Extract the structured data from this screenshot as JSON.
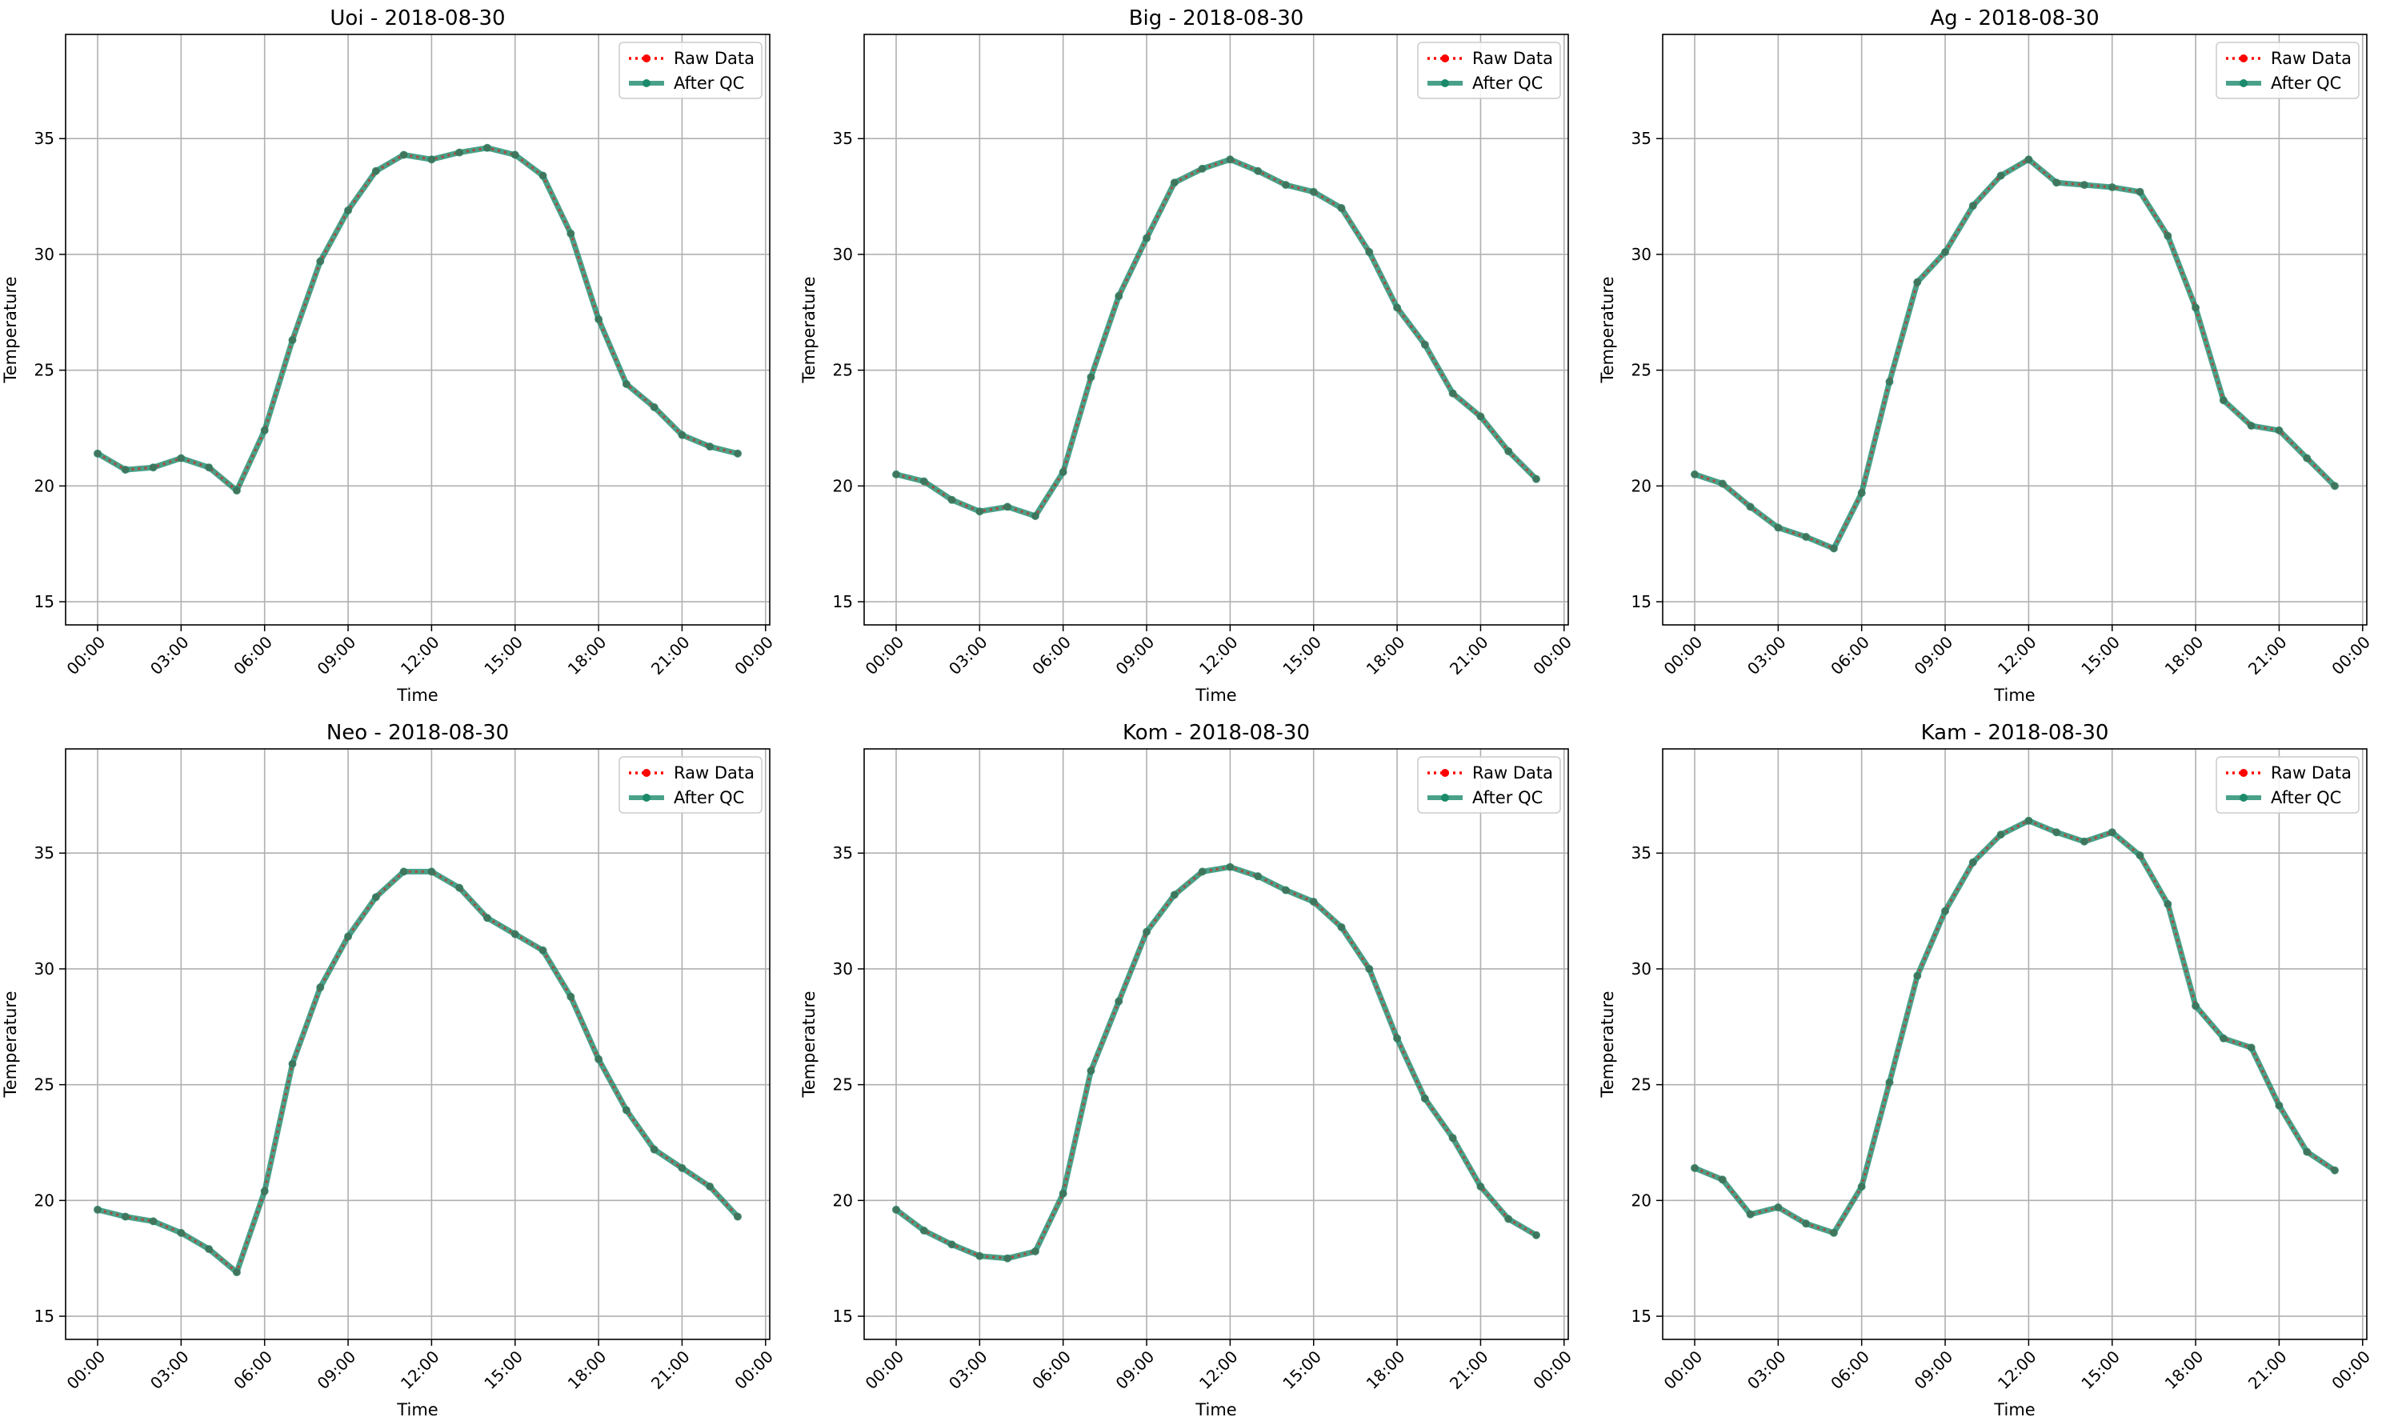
{
  "figure": {
    "background": "#ffffff"
  },
  "colors": {
    "raw": "#ff0000",
    "qc": "#1b8a6b",
    "grid": "#b0b0b0",
    "axes": "#000000"
  },
  "legend": {
    "raw_label": "Raw Data",
    "qc_label": "After QC",
    "placement": "upper right"
  },
  "chart_data": [
    {
      "type": "line",
      "title": "Uoi - 2018-08-30",
      "xlabel": "Time",
      "ylabel": "Temperature",
      "x": [
        "00:00",
        "01:00",
        "02:00",
        "03:00",
        "04:00",
        "05:00",
        "06:00",
        "07:00",
        "08:00",
        "09:00",
        "10:00",
        "11:00",
        "12:00",
        "13:00",
        "14:00",
        "15:00",
        "16:00",
        "17:00",
        "18:00",
        "19:00",
        "20:00",
        "21:00",
        "22:00",
        "23:00"
      ],
      "xticks": [
        "00:00",
        "03:00",
        "06:00",
        "09:00",
        "12:00",
        "15:00",
        "18:00",
        "21:00",
        "00:00"
      ],
      "xlim_hours": [
        -1.15,
        24.15
      ],
      "ylim": [
        14,
        39.5
      ],
      "yticks": [
        15,
        20,
        25,
        30,
        35
      ],
      "grid": true,
      "series": [
        {
          "name": "Raw Data",
          "values": [
            21.4,
            20.7,
            20.8,
            21.2,
            20.8,
            19.8,
            22.4,
            26.3,
            29.7,
            31.9,
            33.6,
            34.3,
            34.1,
            34.4,
            34.6,
            34.3,
            33.4,
            30.9,
            27.2,
            24.4,
            23.4,
            22.2,
            21.7,
            21.4
          ]
        },
        {
          "name": "After QC",
          "values": [
            21.4,
            20.7,
            20.8,
            21.2,
            20.8,
            19.8,
            22.4,
            26.3,
            29.7,
            31.9,
            33.6,
            34.3,
            34.1,
            34.4,
            34.6,
            34.3,
            33.4,
            30.9,
            27.2,
            24.4,
            23.4,
            22.2,
            21.7,
            21.4
          ]
        }
      ]
    },
    {
      "type": "line",
      "title": "Big - 2018-08-30",
      "xlabel": "Time",
      "ylabel": "Temperature",
      "x": [
        "00:00",
        "01:00",
        "02:00",
        "03:00",
        "04:00",
        "05:00",
        "06:00",
        "07:00",
        "08:00",
        "09:00",
        "10:00",
        "11:00",
        "12:00",
        "13:00",
        "14:00",
        "15:00",
        "16:00",
        "17:00",
        "18:00",
        "19:00",
        "20:00",
        "21:00",
        "22:00",
        "23:00"
      ],
      "xticks": [
        "00:00",
        "03:00",
        "06:00",
        "09:00",
        "12:00",
        "15:00",
        "18:00",
        "21:00",
        "00:00"
      ],
      "xlim_hours": [
        -1.15,
        24.15
      ],
      "ylim": [
        14,
        39.5
      ],
      "yticks": [
        15,
        20,
        25,
        30,
        35
      ],
      "grid": true,
      "series": [
        {
          "name": "Raw Data",
          "values": [
            20.5,
            20.2,
            19.4,
            18.9,
            19.1,
            18.7,
            20.6,
            24.7,
            28.2,
            30.7,
            33.1,
            33.7,
            34.1,
            33.6,
            33.0,
            32.7,
            32.0,
            30.1,
            27.7,
            26.1,
            24.0,
            23.0,
            21.5,
            20.3
          ]
        },
        {
          "name": "After QC",
          "values": [
            20.5,
            20.2,
            19.4,
            18.9,
            19.1,
            18.7,
            20.6,
            24.7,
            28.2,
            30.7,
            33.1,
            33.7,
            34.1,
            33.6,
            33.0,
            32.7,
            32.0,
            30.1,
            27.7,
            26.1,
            24.0,
            23.0,
            21.5,
            20.3
          ]
        }
      ]
    },
    {
      "type": "line",
      "title": "Ag - 2018-08-30",
      "xlabel": "Time",
      "ylabel": "Temperature",
      "x": [
        "00:00",
        "01:00",
        "02:00",
        "03:00",
        "04:00",
        "05:00",
        "06:00",
        "07:00",
        "08:00",
        "09:00",
        "10:00",
        "11:00",
        "12:00",
        "13:00",
        "14:00",
        "15:00",
        "16:00",
        "17:00",
        "18:00",
        "19:00",
        "20:00",
        "21:00",
        "22:00",
        "23:00"
      ],
      "xticks": [
        "00:00",
        "03:00",
        "06:00",
        "09:00",
        "12:00",
        "15:00",
        "18:00",
        "21:00",
        "00:00"
      ],
      "xlim_hours": [
        -1.15,
        24.15
      ],
      "ylim": [
        14,
        39.5
      ],
      "yticks": [
        15,
        20,
        25,
        30,
        35
      ],
      "grid": true,
      "series": [
        {
          "name": "Raw Data",
          "values": [
            20.5,
            20.1,
            19.1,
            18.2,
            17.8,
            17.3,
            19.7,
            24.5,
            28.8,
            30.1,
            32.1,
            33.4,
            34.1,
            33.1,
            33.0,
            32.9,
            32.7,
            30.8,
            27.7,
            23.7,
            22.6,
            22.4,
            21.2,
            20.0
          ]
        },
        {
          "name": "After QC",
          "values": [
            20.5,
            20.1,
            19.1,
            18.2,
            17.8,
            17.3,
            19.7,
            24.5,
            28.8,
            30.1,
            32.1,
            33.4,
            34.1,
            33.1,
            33.0,
            32.9,
            32.7,
            30.8,
            27.7,
            23.7,
            22.6,
            22.4,
            21.2,
            20.0
          ]
        }
      ]
    },
    {
      "type": "line",
      "title": "Neo - 2018-08-30",
      "xlabel": "Time",
      "ylabel": "Temperature",
      "x": [
        "00:00",
        "01:00",
        "02:00",
        "03:00",
        "04:00",
        "05:00",
        "06:00",
        "07:00",
        "08:00",
        "09:00",
        "10:00",
        "11:00",
        "12:00",
        "13:00",
        "14:00",
        "15:00",
        "16:00",
        "17:00",
        "18:00",
        "19:00",
        "20:00",
        "21:00",
        "22:00",
        "23:00"
      ],
      "xticks": [
        "00:00",
        "03:00",
        "06:00",
        "09:00",
        "12:00",
        "15:00",
        "18:00",
        "21:00",
        "00:00"
      ],
      "xlim_hours": [
        -1.15,
        24.15
      ],
      "ylim": [
        14,
        39.5
      ],
      "yticks": [
        15,
        20,
        25,
        30,
        35
      ],
      "grid": true,
      "series": [
        {
          "name": "Raw Data",
          "values": [
            19.6,
            19.3,
            19.1,
            18.6,
            17.9,
            16.9,
            20.4,
            25.9,
            29.2,
            31.4,
            33.1,
            34.2,
            34.2,
            33.5,
            32.2,
            31.5,
            30.8,
            28.8,
            26.1,
            23.9,
            22.2,
            21.4,
            20.6,
            19.3
          ]
        },
        {
          "name": "After QC",
          "values": [
            19.6,
            19.3,
            19.1,
            18.6,
            17.9,
            16.9,
            20.4,
            25.9,
            29.2,
            31.4,
            33.1,
            34.2,
            34.2,
            33.5,
            32.2,
            31.5,
            30.8,
            28.8,
            26.1,
            23.9,
            22.2,
            21.4,
            20.6,
            19.3
          ]
        }
      ]
    },
    {
      "type": "line",
      "title": "Kom - 2018-08-30",
      "xlabel": "Time",
      "ylabel": "Temperature",
      "x": [
        "00:00",
        "01:00",
        "02:00",
        "03:00",
        "04:00",
        "05:00",
        "06:00",
        "07:00",
        "08:00",
        "09:00",
        "10:00",
        "11:00",
        "12:00",
        "13:00",
        "14:00",
        "15:00",
        "16:00",
        "17:00",
        "18:00",
        "19:00",
        "20:00",
        "21:00",
        "22:00",
        "23:00"
      ],
      "xticks": [
        "00:00",
        "03:00",
        "06:00",
        "09:00",
        "12:00",
        "15:00",
        "18:00",
        "21:00",
        "00:00"
      ],
      "xlim_hours": [
        -1.15,
        24.15
      ],
      "ylim": [
        14,
        39.5
      ],
      "yticks": [
        15,
        20,
        25,
        30,
        35
      ],
      "grid": true,
      "series": [
        {
          "name": "Raw Data",
          "values": [
            19.6,
            18.7,
            18.1,
            17.6,
            17.5,
            17.8,
            20.3,
            25.6,
            28.6,
            31.6,
            33.2,
            34.2,
            34.4,
            34.0,
            33.4,
            32.9,
            31.8,
            30.0,
            27.0,
            24.4,
            22.7,
            20.6,
            19.2,
            18.5
          ]
        },
        {
          "name": "After QC",
          "values": [
            19.6,
            18.7,
            18.1,
            17.6,
            17.5,
            17.8,
            20.3,
            25.6,
            28.6,
            31.6,
            33.2,
            34.2,
            34.4,
            34.0,
            33.4,
            32.9,
            31.8,
            30.0,
            27.0,
            24.4,
            22.7,
            20.6,
            19.2,
            18.5
          ]
        }
      ]
    },
    {
      "type": "line",
      "title": "Kam - 2018-08-30",
      "xlabel": "Time",
      "ylabel": "Temperature",
      "x": [
        "00:00",
        "01:00",
        "02:00",
        "03:00",
        "04:00",
        "05:00",
        "06:00",
        "07:00",
        "08:00",
        "09:00",
        "10:00",
        "11:00",
        "12:00",
        "13:00",
        "14:00",
        "15:00",
        "16:00",
        "17:00",
        "18:00",
        "19:00",
        "20:00",
        "21:00",
        "22:00",
        "23:00"
      ],
      "xticks": [
        "00:00",
        "03:00",
        "06:00",
        "09:00",
        "12:00",
        "15:00",
        "18:00",
        "21:00",
        "00:00"
      ],
      "xlim_hours": [
        -1.15,
        24.15
      ],
      "ylim": [
        14,
        39.5
      ],
      "yticks": [
        15,
        20,
        25,
        30,
        35
      ],
      "grid": true,
      "series": [
        {
          "name": "Raw Data",
          "values": [
            21.4,
            20.9,
            19.4,
            19.7,
            19.0,
            18.6,
            20.6,
            25.1,
            29.7,
            32.5,
            34.6,
            35.8,
            36.4,
            35.9,
            35.5,
            35.9,
            34.9,
            32.8,
            28.4,
            27.0,
            26.6,
            24.1,
            22.1,
            21.3
          ]
        },
        {
          "name": "After QC",
          "values": [
            21.4,
            20.9,
            19.4,
            19.7,
            19.0,
            18.6,
            20.6,
            25.1,
            29.7,
            32.5,
            34.6,
            35.8,
            36.4,
            35.9,
            35.5,
            35.9,
            34.9,
            32.8,
            28.4,
            27.0,
            26.6,
            24.1,
            22.1,
            21.3
          ]
        }
      ]
    }
  ]
}
